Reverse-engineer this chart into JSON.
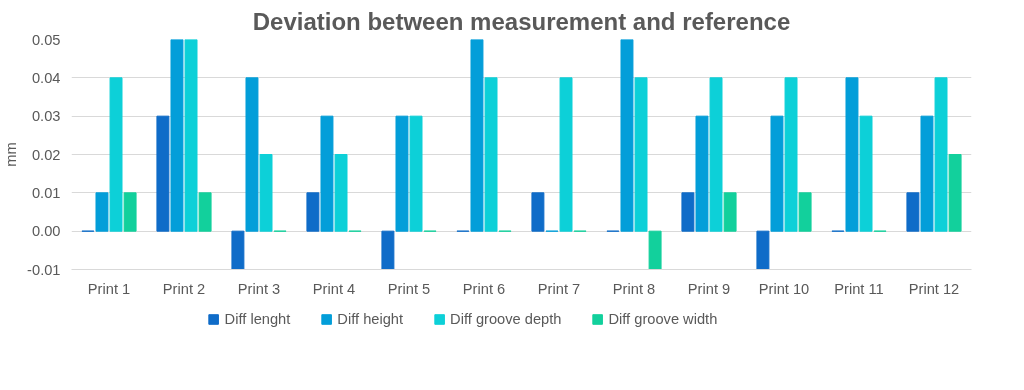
{
  "chart_data": {
    "type": "bar",
    "title": "Deviation between measurement and reference",
    "ylabel": "mm",
    "categories": [
      "Print 1",
      "Print 2",
      "Print 3",
      "Print 4",
      "Print 5",
      "Print 6",
      "Print 7",
      "Print 8",
      "Print 9",
      "Print 10",
      "Print 11",
      "Print 12"
    ],
    "series": [
      {
        "name": "Diff lenght",
        "color": "#0f6cc8",
        "values": [
          0,
          0.03,
          -0.01,
          0.01,
          -0.01,
          0,
          0.01,
          0,
          0.01,
          -0.01,
          0,
          0.01
        ]
      },
      {
        "name": "Diff height",
        "color": "#039ed9",
        "values": [
          0.01,
          0.05,
          0.04,
          0.03,
          0.03,
          0.05,
          0,
          0.05,
          0.03,
          0.03,
          0.04,
          0.03
        ]
      },
      {
        "name": "Diff groove depth",
        "color": "#0dd0d8",
        "values": [
          0.04,
          0.05,
          0.02,
          0.02,
          0.03,
          0.04,
          0.04,
          0.04,
          0.04,
          0.04,
          0.03,
          0.04
        ]
      },
      {
        "name": "Diff groove width",
        "color": "#12d09c",
        "values": [
          0.01,
          0.01,
          0,
          0,
          0,
          0,
          0,
          -0.01,
          0.01,
          0.01,
          0,
          0.02
        ]
      }
    ],
    "ylim": [
      -0.01,
      0.05
    ],
    "yticks": [
      {
        "value": -0.01,
        "label": "-0.01"
      },
      {
        "value": 0,
        "label": "0.00"
      },
      {
        "value": 0.01,
        "label": "0.01"
      },
      {
        "value": 0.02,
        "label": "0.02"
      },
      {
        "value": 0.03,
        "label": "0.03"
      },
      {
        "value": 0.04,
        "label": "0.04"
      },
      {
        "value": 0.05,
        "label": "0.05"
      }
    ],
    "grid": "y",
    "legend": "bottom"
  }
}
